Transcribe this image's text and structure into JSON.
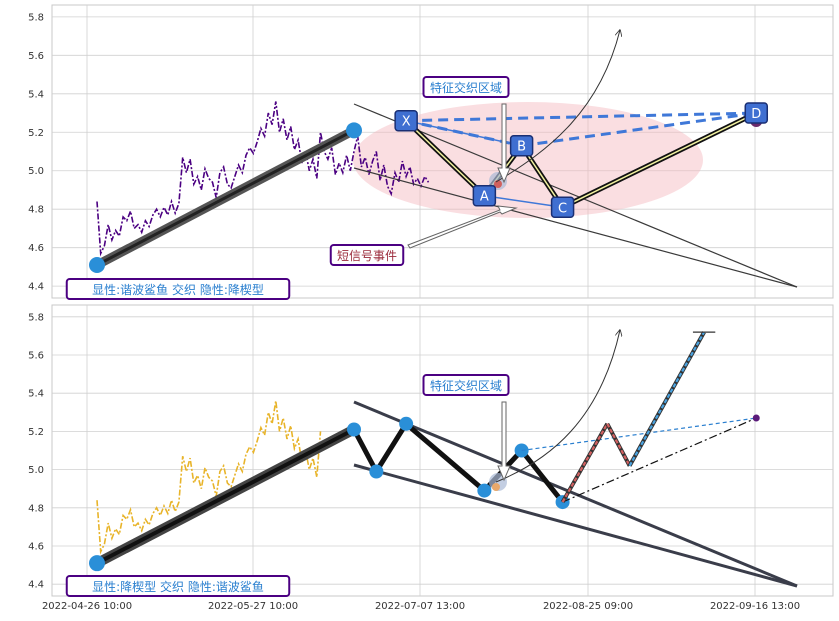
{
  "chart_data": [
    {
      "type": "line",
      "panel": "top",
      "ylim": [
        4.38,
        5.82
      ],
      "y_ticks": [
        "5.8",
        "5.6",
        "5.4",
        "5.2",
        "5.0",
        "4.8",
        "4.6",
        "4.4"
      ],
      "grid": true,
      "series_color": "#4b0082",
      "series": [
        {
          "x": [
            0,
            1,
            2,
            3,
            4,
            5,
            6,
            7,
            8,
            9,
            10,
            11,
            12,
            13,
            14,
            15,
            16,
            17,
            18,
            19,
            20,
            21,
            22,
            23,
            24,
            25,
            26,
            27,
            28,
            29,
            30,
            31,
            32,
            33,
            34,
            35,
            36,
            37,
            38,
            39,
            40,
            41,
            42,
            43,
            44,
            45,
            46,
            47,
            48,
            49,
            50,
            51,
            52,
            53,
            54,
            55,
            56,
            57,
            58,
            59,
            60,
            61,
            62,
            63,
            64,
            65,
            66,
            67,
            68,
            69,
            70,
            71,
            72,
            73,
            74,
            75,
            76,
            77,
            78,
            79,
            80,
            81,
            82,
            83,
            84,
            85,
            86,
            87,
            88,
            89
          ],
          "values": [
            4.84,
            4.57,
            4.61,
            4.72,
            4.64,
            4.69,
            4.66,
            4.76,
            4.74,
            4.79,
            4.7,
            4.72,
            4.68,
            4.74,
            4.71,
            4.77,
            4.8,
            4.76,
            4.81,
            4.77,
            4.84,
            4.78,
            4.83,
            5.07,
            4.99,
            5.06,
            4.93,
            4.97,
            4.9,
            5.01,
            4.96,
            4.94,
            4.86,
            4.99,
            5.02,
            4.93,
            4.91,
            4.97,
            5.03,
            4.99,
            5.08,
            5.12,
            5.09,
            5.15,
            5.22,
            5.18,
            5.3,
            5.24,
            5.36,
            5.2,
            5.27,
            5.16,
            5.23,
            5.11,
            5.16,
            5.04,
            5.1,
            5.0,
            5.06,
            4.96,
            5.2,
            5.1,
            5.06,
            5.12,
            4.98,
            5.04,
            4.99,
            5.08,
            5.0,
            5.1,
            5.18,
            5.02,
            5.07,
            4.98,
            5.05,
            5.1,
            4.95,
            5.03,
            4.92,
            4.88,
            4.99,
            4.94,
            5.05,
            4.97,
            5.02,
            4.93,
            4.96,
            4.92,
            4.97,
            4.94
          ]
        }
      ],
      "pattern_points": [
        {
          "label": "X",
          "x": 83,
          "y": 5.26
        },
        {
          "label": "A",
          "x": 104,
          "y": 4.87
        },
        {
          "label": "B",
          "x": 114,
          "y": 5.13
        },
        {
          "label": "C",
          "x": 125,
          "y": 4.81
        },
        {
          "label": "D",
          "x": 177,
          "y": 5.3
        }
      ],
      "trend_start": {
        "x": 0,
        "y": 4.51
      },
      "trend_end": {
        "x": 69,
        "y": 5.21
      },
      "annotations": [
        "特征交织区域",
        "短信号事件",
        "显性:谐波鲨鱼 交织 隐性:降楔型"
      ]
    },
    {
      "type": "line",
      "panel": "bottom",
      "ylim": [
        4.38,
        5.82
      ],
      "y_ticks": [
        "5.8",
        "5.6",
        "5.4",
        "5.2",
        "5.0",
        "4.8",
        "4.6",
        "4.4"
      ],
      "grid": true,
      "series_color": "#e8b42a",
      "x_ticks": [
        "2022-04-26 10:00",
        "2022-05-27 10:00",
        "2022-07-07 13:00",
        "2022-08-25 09:00",
        "2022-09-16 13:00"
      ],
      "wedge_points": [
        {
          "x": 69,
          "y": 5.21
        },
        {
          "x": 75,
          "y": 4.99
        },
        {
          "x": 83,
          "y": 5.24
        },
        {
          "x": 104,
          "y": 4.89
        },
        {
          "x": 114,
          "y": 5.1
        },
        {
          "x": 125,
          "y": 4.83
        }
      ],
      "projection": [
        {
          "x": 125,
          "y": 4.83
        },
        {
          "x": 137,
          "y": 5.24
        },
        {
          "x": 143,
          "y": 5.02
        },
        {
          "x": 163,
          "y": 5.72
        }
      ],
      "target": {
        "x": 177,
        "y": 5.27
      },
      "trend_start": {
        "x": 0,
        "y": 4.51
      },
      "trend_end": {
        "x": 69,
        "y": 5.21
      },
      "annotations": [
        "特征交织区域",
        "显性:降楔型 交织 隐性:谐波鲨鱼"
      ]
    }
  ]
}
